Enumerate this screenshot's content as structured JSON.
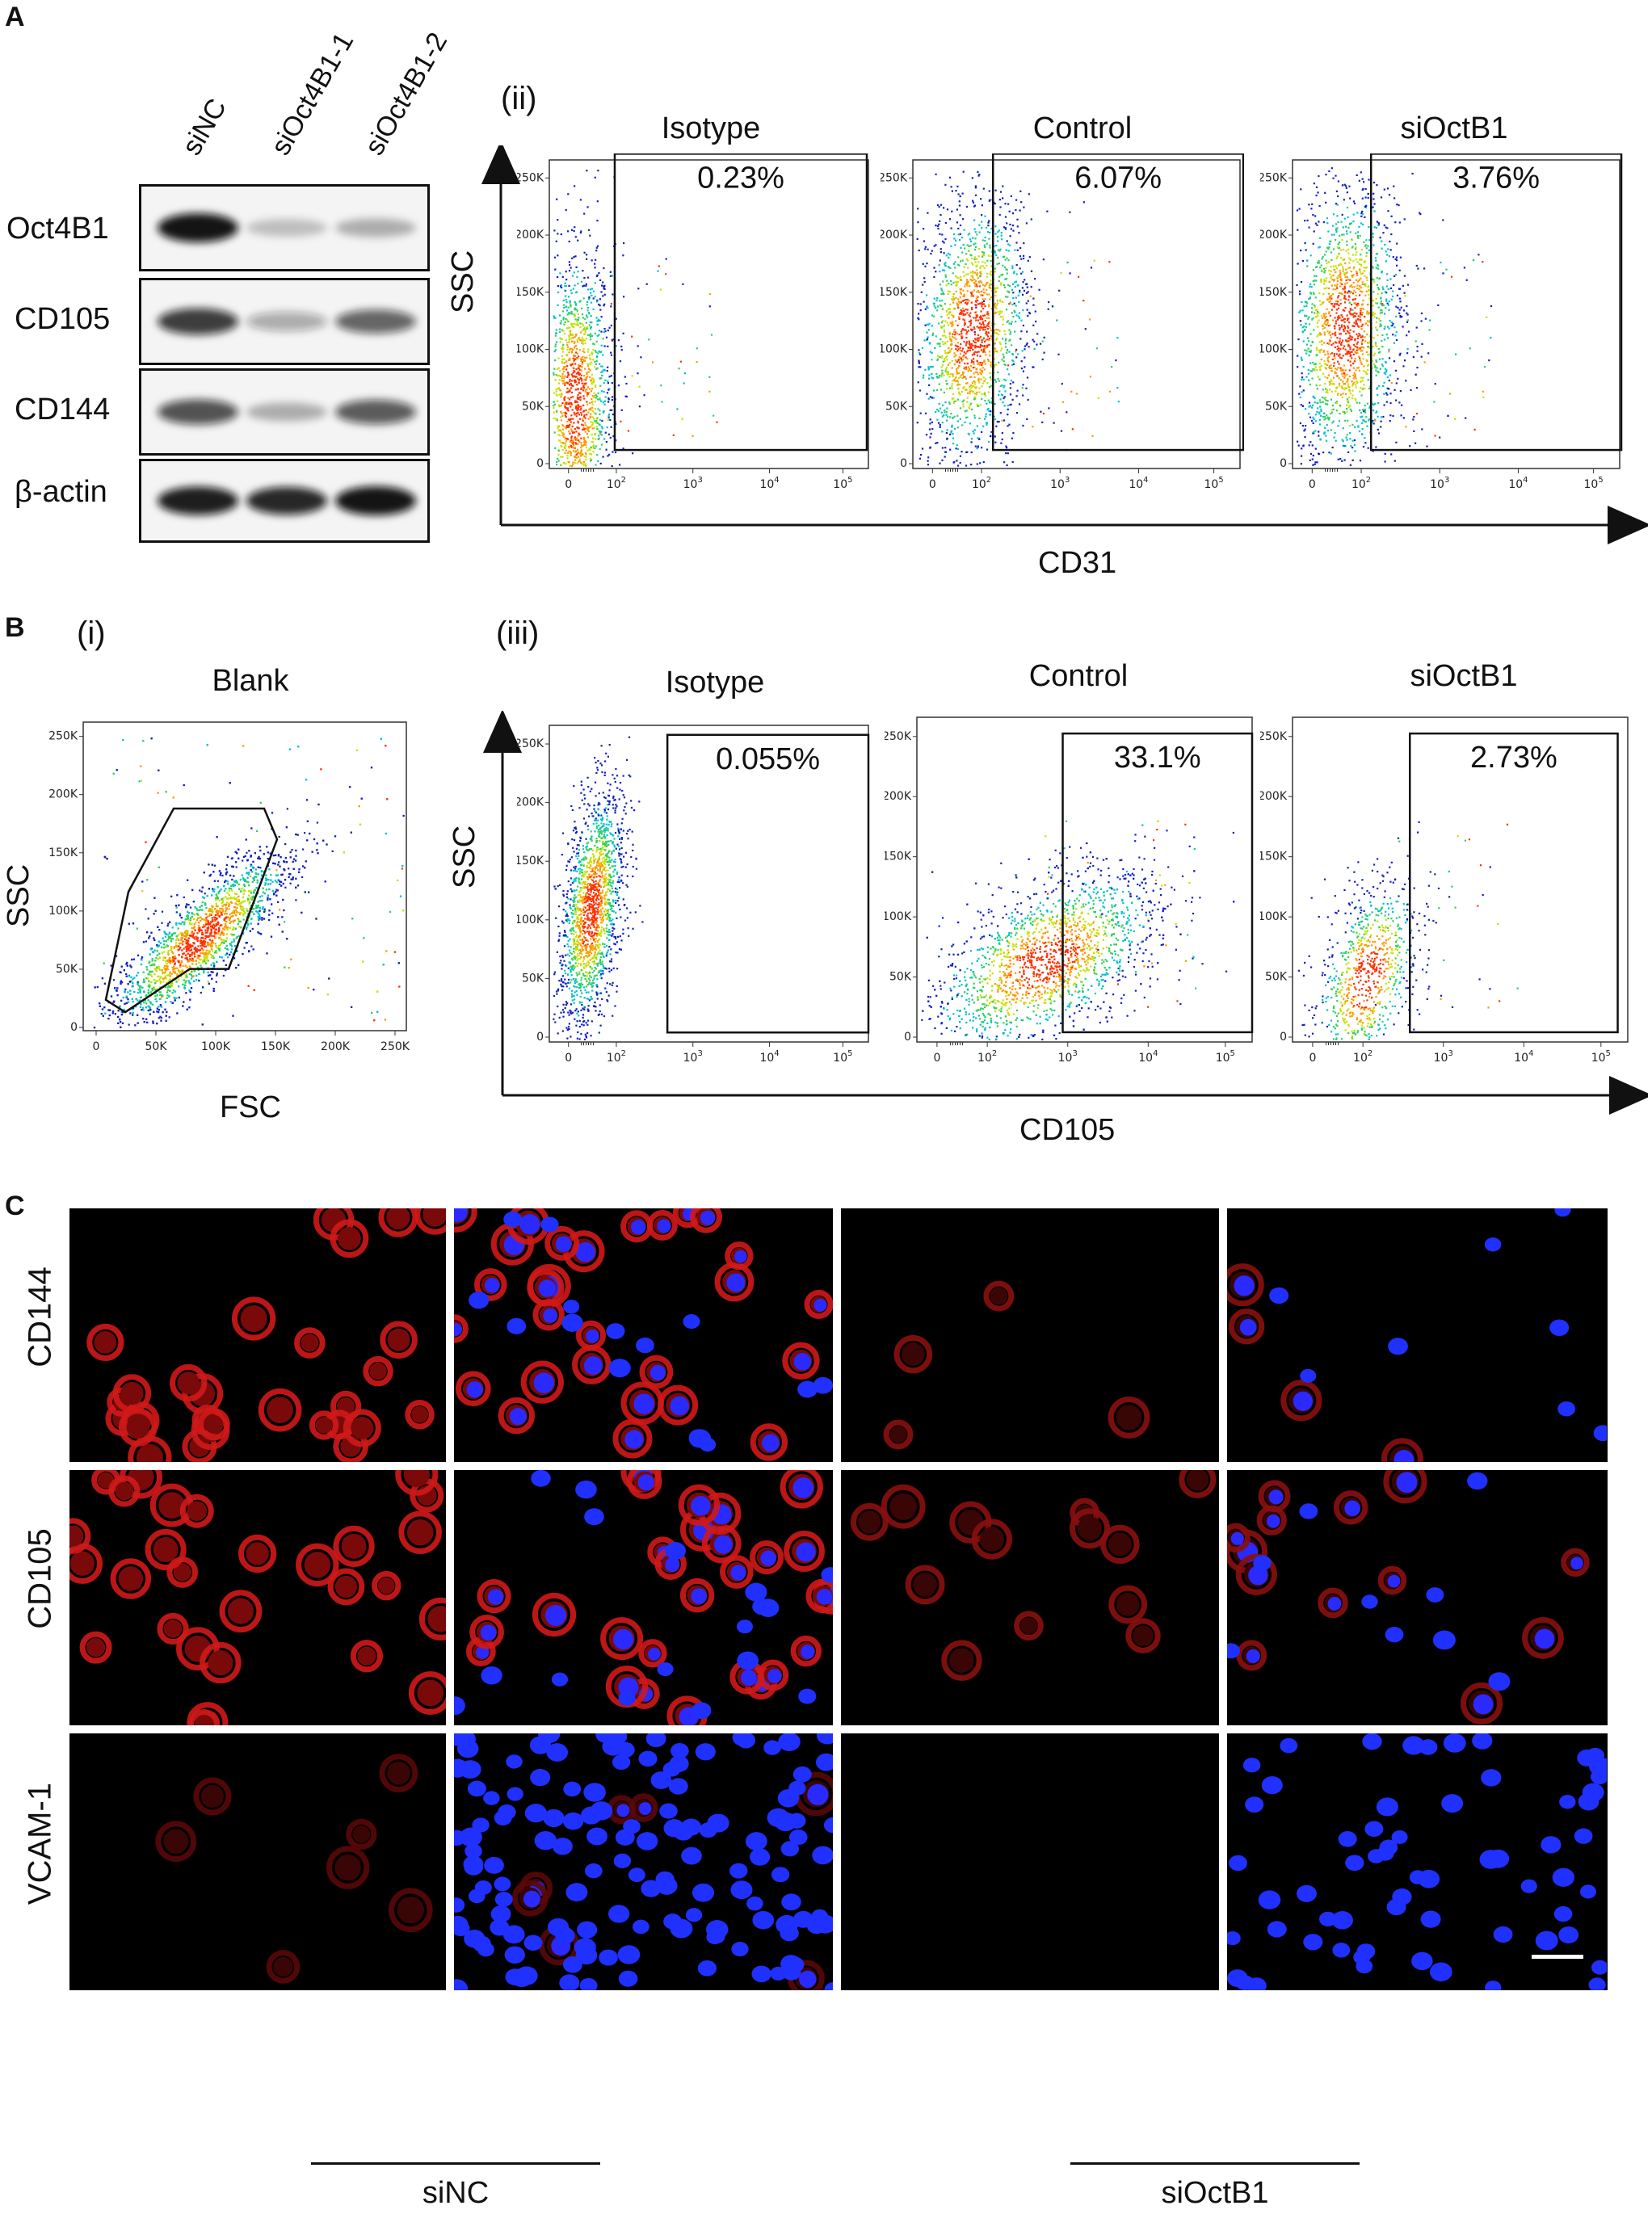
{
  "panels": {
    "a": "A",
    "b": "B",
    "c": "C",
    "ii": "(ii)",
    "i": "(i)",
    "iii": "(iii)"
  },
  "western": {
    "lanes": [
      "siNC",
      "siOct4B1-1",
      "siOct4B1-2"
    ],
    "bands": [
      {
        "label": "Oct4B1",
        "levels": [
          1.0,
          0.12,
          0.2
        ]
      },
      {
        "label": "CD105",
        "levels": [
          0.8,
          0.25,
          0.6
        ]
      },
      {
        "label": "CD144",
        "levels": [
          0.7,
          0.2,
          0.65
        ]
      },
      {
        "label": "β-actin",
        "levels": [
          0.95,
          0.9,
          1.0
        ]
      }
    ]
  },
  "flow_cd31": {
    "y_axis": "SSC",
    "x_axis": "CD31",
    "plots": [
      {
        "title": "Isotype",
        "percent": "0.23%"
      },
      {
        "title": "Control",
        "percent": "6.07%"
      },
      {
        "title": "siOctB1",
        "percent": "3.76%"
      }
    ]
  },
  "flow_blank": {
    "title": "Blank",
    "y_axis": "SSC",
    "x_axis": "FSC",
    "x_ticks": [
      "0",
      "50K",
      "100K",
      "150K",
      "200K",
      "250K"
    ]
  },
  "flow_cd105": {
    "y_axis": "SSC",
    "x_axis": "CD105",
    "plots": [
      {
        "title": "Isotype",
        "percent": "0.055%"
      },
      {
        "title": "Control",
        "percent": "33.1%"
      },
      {
        "title": "siOctB1",
        "percent": "2.73%"
      }
    ]
  },
  "y_ticks": [
    "0",
    "50K",
    "100K",
    "150K",
    "200K",
    "250K"
  ],
  "log_ticks": [
    "0",
    "10",
    "10",
    "10",
    "10"
  ],
  "log_exps": [
    "",
    "2",
    "3",
    "4",
    "5"
  ],
  "if": {
    "rows": [
      "CD144",
      "CD105",
      "VCAM-1"
    ],
    "groups": [
      "siNC",
      "siOctB1"
    ]
  },
  "colors": {
    "red": "#d01818",
    "blue": "#2a2aff"
  }
}
